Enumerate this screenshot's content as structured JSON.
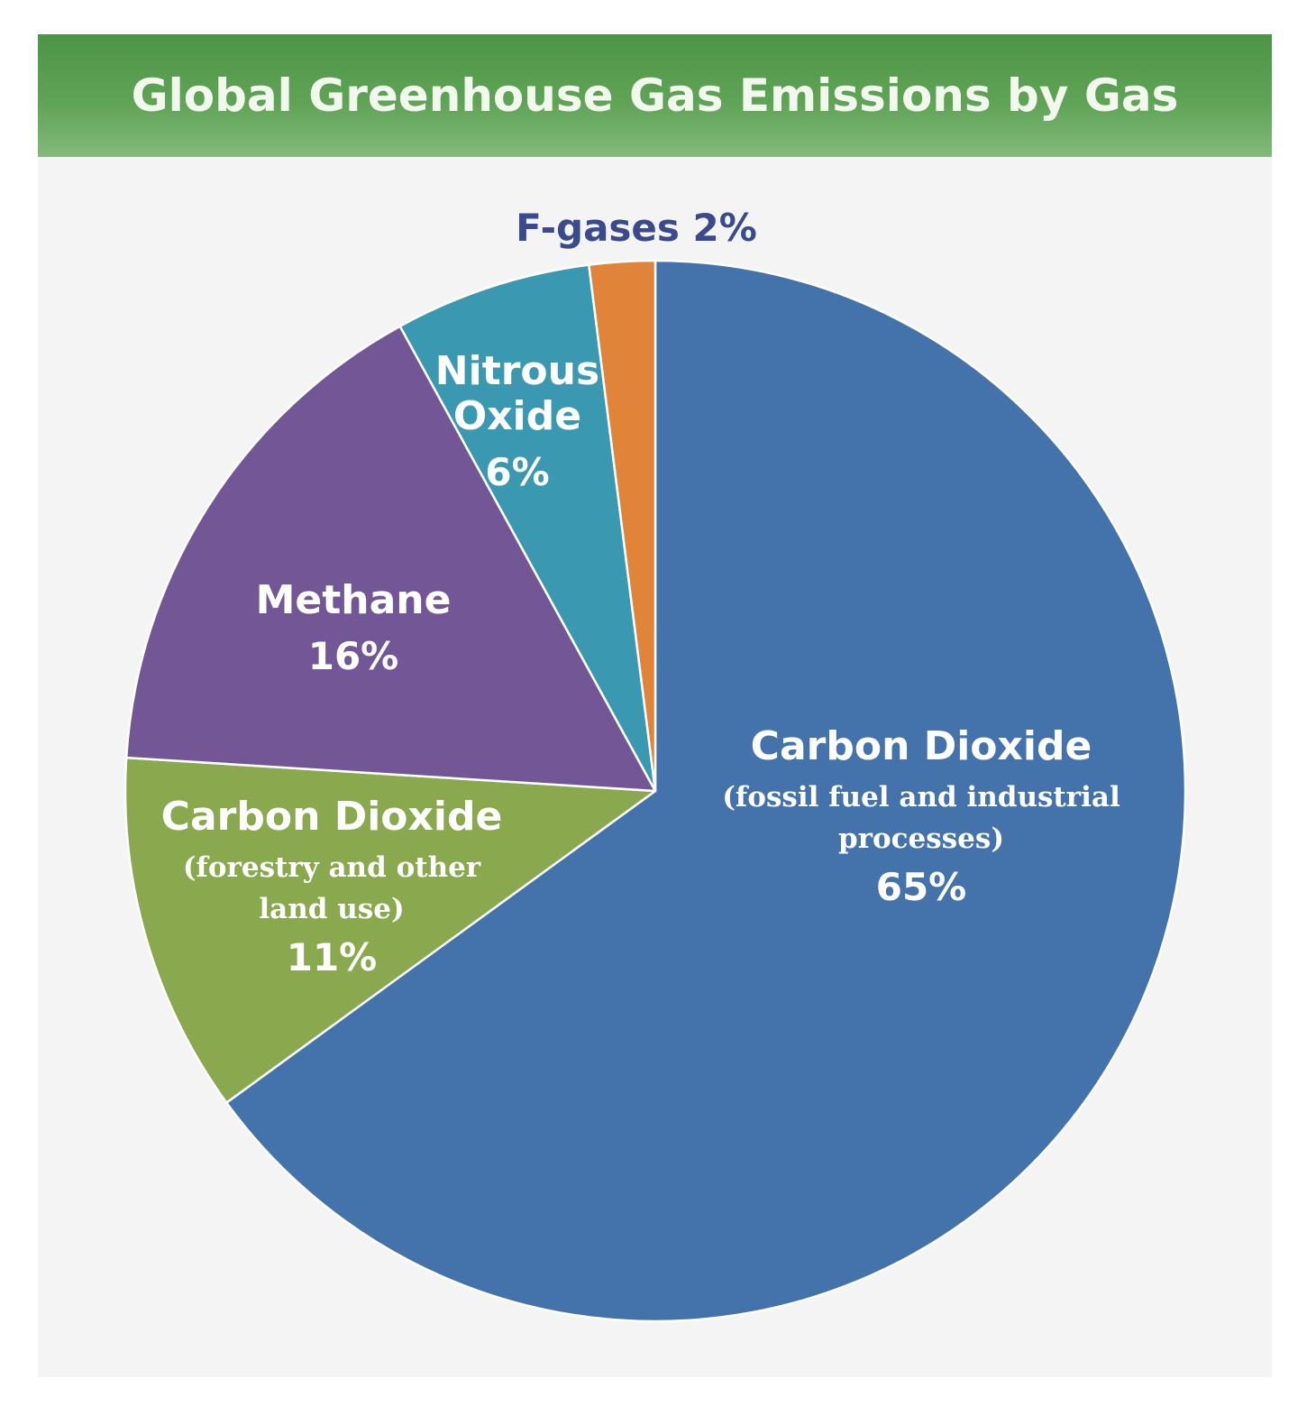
{
  "colors": {
    "header_green": "#5fa356",
    "card_bg": "#f4f4f4",
    "title_text": "#f3f8ef",
    "outside_label": "#3a4a8c",
    "slice_border": "#ffffff"
  },
  "chart_data": {
    "type": "pie",
    "title": "Global Greenhouse Gas Emissions by Gas",
    "slices": [
      {
        "key": "co2-fossil",
        "name": "Carbon Dioxide",
        "sublabel_lines": [
          "(fossil fuel and industrial",
          "processes)"
        ],
        "value": 65,
        "value_label": "65%",
        "color": "#4472aa"
      },
      {
        "key": "co2-forestry",
        "name": "Carbon Dioxide",
        "sublabel_lines": [
          "(forestry and other",
          "land use)"
        ],
        "value": 11,
        "value_label": "11%",
        "color": "#8aa84d"
      },
      {
        "key": "methane",
        "name_lines": [
          "Methane"
        ],
        "value": 16,
        "value_label": "16%",
        "color": "#725695"
      },
      {
        "key": "nitrous-oxide",
        "name_lines": [
          "Nitrous",
          "Oxide"
        ],
        "value": 6,
        "value_label": "6%",
        "color": "#3a98b1"
      },
      {
        "key": "f-gases",
        "label": "F-gases 2%",
        "value": 2,
        "value_label": "2%",
        "color": "#e0843a",
        "label_position": "outside-top"
      }
    ],
    "start_angle_deg": 0,
    "direction": "clockwise",
    "legend": "none (labels on slices)"
  }
}
